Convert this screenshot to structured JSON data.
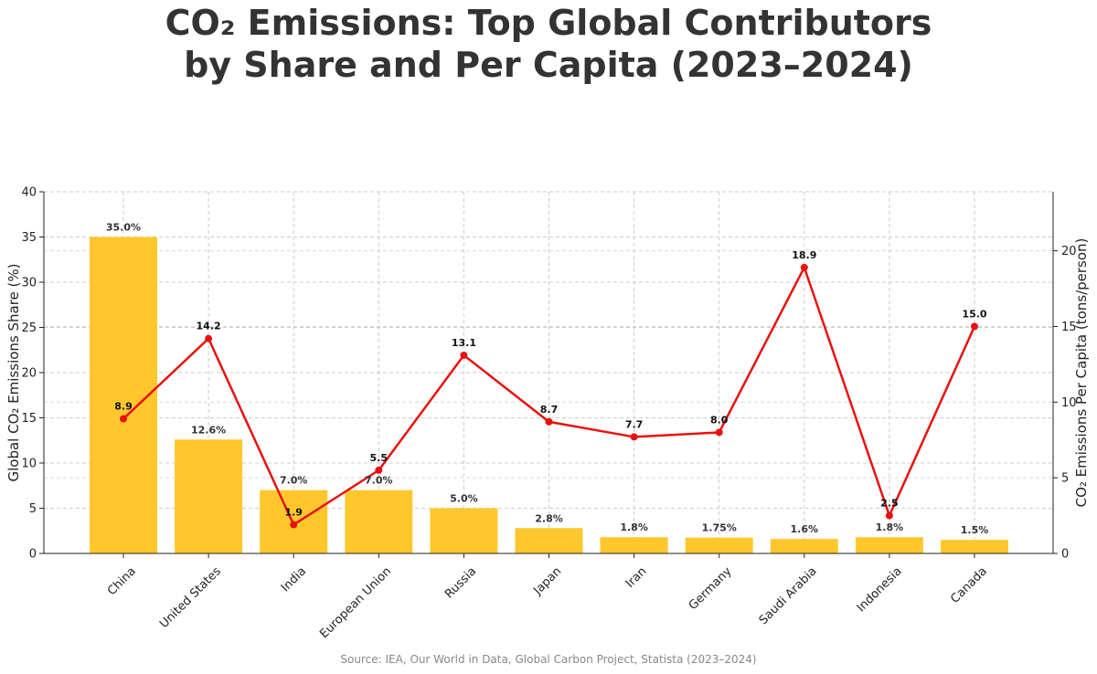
{
  "chart_data": {
    "type": "bar",
    "title_line1": "CO₂ Emissions: Top Global Contributors",
    "title_line2": "by Share and Per Capita (2023–2024)",
    "ylabel": "Global CO₂ Emissions Share (%)",
    "y2label": "CO₂ Emissions Per Capita (tons/person)",
    "ylim": [
      0,
      40
    ],
    "y_ticks": [
      0,
      5,
      10,
      15,
      20,
      25,
      30,
      35,
      40
    ],
    "y2lim": [
      0,
      23.9
    ],
    "y2_ticks": [
      0,
      5,
      10,
      15,
      20
    ],
    "grid": true,
    "categories": [
      "China",
      "United States",
      "India",
      "European Union",
      "Russia",
      "Japan",
      "Iran",
      "Germany",
      "Saudi Arabia",
      "Indonesia",
      "Canada"
    ],
    "series": [
      {
        "type": "bar",
        "axis": "left",
        "color": "#FFC72C",
        "values": [
          35.0,
          12.6,
          7.0,
          7.0,
          5.0,
          2.8,
          1.8,
          1.75,
          1.6,
          1.8,
          1.5
        ],
        "labels": [
          "35.0%",
          "12.6%",
          "7.0%",
          "7.0%",
          "5.0%",
          "2.8%",
          "1.8%",
          "1.75%",
          "1.6%",
          "1.8%",
          "1.5%"
        ]
      },
      {
        "type": "line",
        "axis": "right",
        "color": "#E8110F",
        "values": [
          8.9,
          14.2,
          1.9,
          5.5,
          13.1,
          8.7,
          7.7,
          8.0,
          18.9,
          2.5,
          15.0
        ],
        "labels": [
          "8.9",
          "14.2",
          "1.9",
          "5.5",
          "13.1",
          "8.7",
          "7.7",
          "8.0",
          "18.9",
          "2.5",
          "15.0"
        ]
      }
    ],
    "source": "Source: IEA, Our World in Data, Global Carbon Project, Statista (2023–2024)"
  }
}
